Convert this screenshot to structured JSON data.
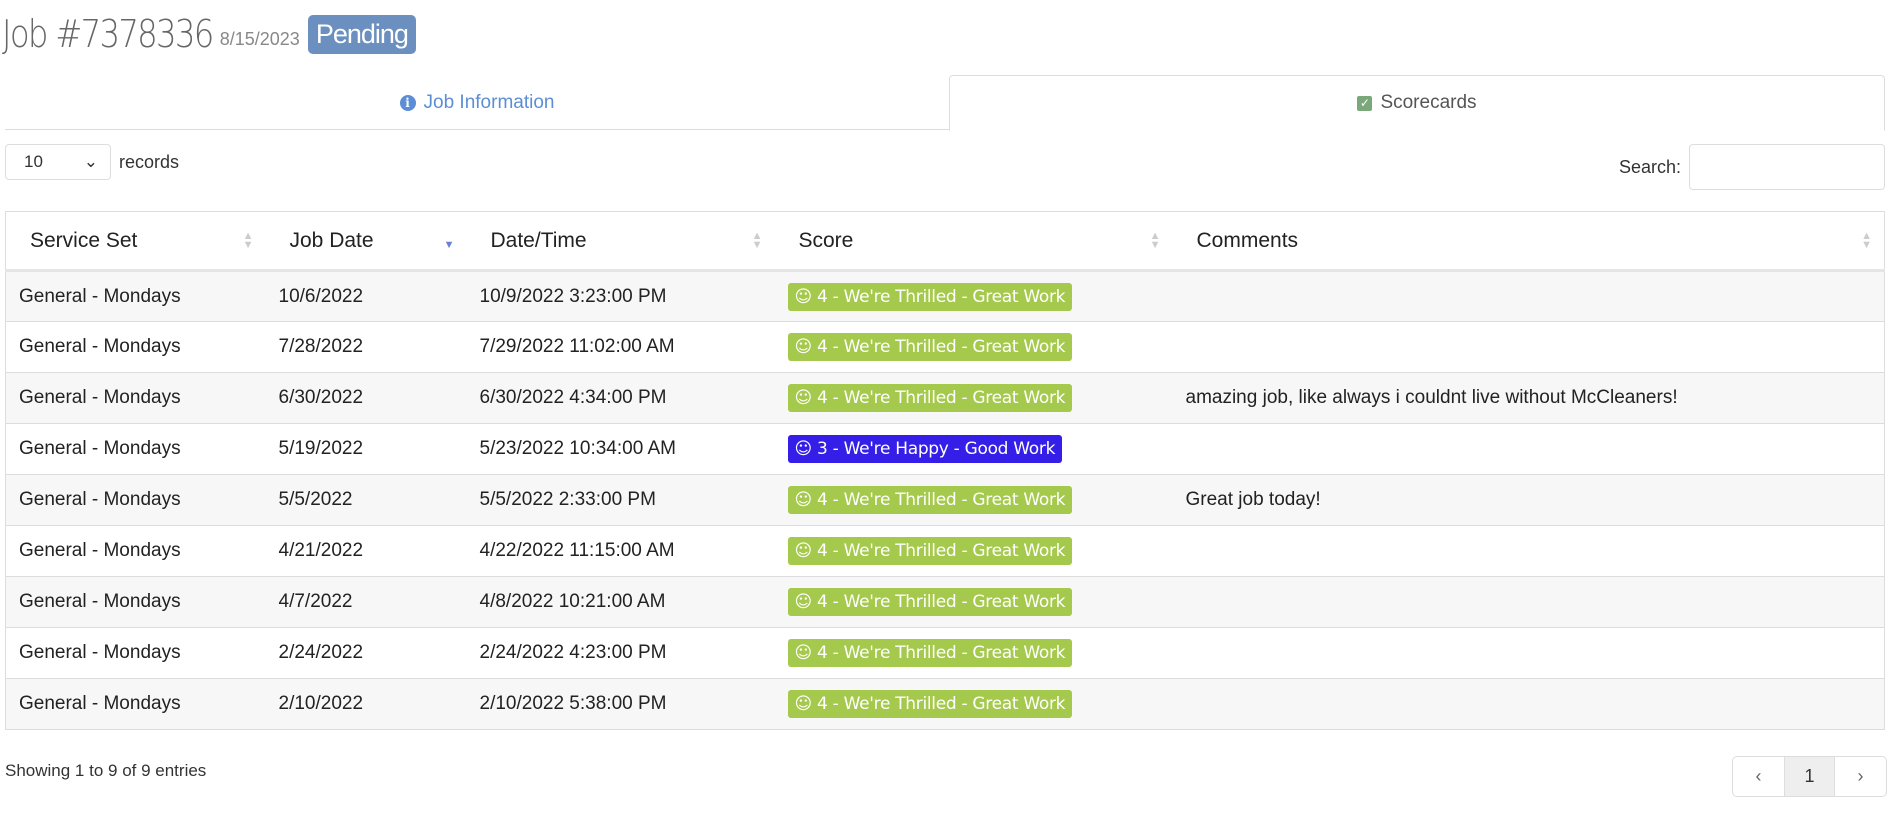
{
  "header": {
    "title": "Job #7378336",
    "date": "8/15/2023",
    "status": "Pending"
  },
  "tabs": [
    {
      "label": "Job Information",
      "icon": "info-icon"
    },
    {
      "label": "Scorecards",
      "icon": "checkbox-icon",
      "active": true
    }
  ],
  "length": {
    "value": "10",
    "label": "records"
  },
  "search": {
    "label": "Search:",
    "value": ""
  },
  "table": {
    "columns": [
      "Service Set",
      "Job Date",
      "Date/Time",
      "Score",
      "Comments"
    ],
    "sorted_column": "Job Date",
    "sort_direction": "descending",
    "rows": [
      {
        "service": "General - Mondays",
        "job_date": "10/6/2022",
        "datetime": "10/9/2022 3:23:00 PM",
        "score": "4 - We're Thrilled - Great Work",
        "comment": ""
      },
      {
        "service": "General - Mondays",
        "job_date": "7/28/2022",
        "datetime": "7/29/2022 11:02:00 AM",
        "score": "4 - We're Thrilled - Great Work",
        "comment": ""
      },
      {
        "service": "General - Mondays",
        "job_date": "6/30/2022",
        "datetime": "6/30/2022 4:34:00 PM",
        "score": "4 - We're Thrilled - Great Work",
        "comment": "amazing job, like always i couldnt live without McCleaners!"
      },
      {
        "service": "General - Mondays",
        "job_date": "5/19/2022",
        "datetime": "5/23/2022 10:34:00 AM",
        "score": "3 - We're Happy - Good Work",
        "comment": ""
      },
      {
        "service": "General - Mondays",
        "job_date": "5/5/2022",
        "datetime": "5/5/2022 2:33:00 PM",
        "score": "4 - We're Thrilled - Great Work",
        "comment": "Great job today!"
      },
      {
        "service": "General - Mondays",
        "job_date": "4/21/2022",
        "datetime": "4/22/2022 11:15:00 AM",
        "score": "4 - We're Thrilled - Great Work",
        "comment": ""
      },
      {
        "service": "General - Mondays",
        "job_date": "4/7/2022",
        "datetime": "4/8/2022 10:21:00 AM",
        "score": "4 - We're Thrilled - Great Work",
        "comment": ""
      },
      {
        "service": "General - Mondays",
        "job_date": "2/24/2022",
        "datetime": "2/24/2022 4:23:00 PM",
        "score": "4 - We're Thrilled - Great Work",
        "comment": ""
      },
      {
        "service": "General - Mondays",
        "job_date": "2/10/2022",
        "datetime": "2/10/2022 5:38:00 PM",
        "score": "4 - We're Thrilled - Great Work",
        "comment": ""
      }
    ]
  },
  "score_colors": {
    "4": "#a5c94c",
    "3": "#341ee8"
  },
  "footer": {
    "info": "Showing 1 to 9 of 9 entries",
    "prev": "‹",
    "page": "1",
    "next": "›"
  }
}
